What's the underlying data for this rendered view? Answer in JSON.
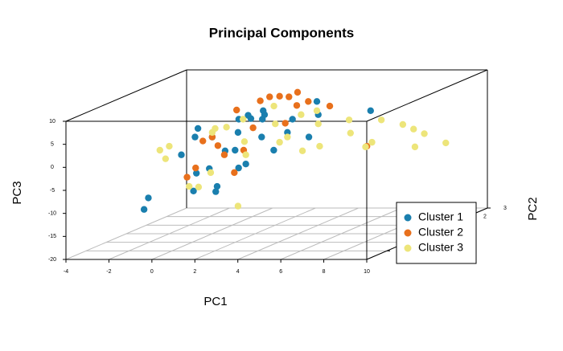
{
  "chart_data": {
    "type": "scatter3d",
    "title": "Principal Components",
    "x_label": "PC1",
    "y_label": "PC2",
    "z_label": "PC3",
    "xlim": [
      -4,
      10
    ],
    "xticks": [
      -4,
      -2,
      0,
      2,
      4,
      6,
      8,
      10
    ],
    "ylim": [
      -3,
      3
    ],
    "yticks": [
      -2,
      -1,
      0,
      1,
      2,
      3
    ],
    "zlim": [
      -20,
      10
    ],
    "zticks": [
      -20,
      -15,
      -10,
      -5,
      0,
      5,
      10
    ],
    "grid": true,
    "legend": "bottom-right",
    "series": [
      {
        "name": "Cluster 1",
        "color": "#1a7fae",
        "x": [
          -1.3,
          -1.1,
          -0.5,
          0,
          0.3,
          0.8,
          1.2,
          1.5,
          2,
          2.3,
          2.8,
          3.1,
          3.5,
          4,
          0.5,
          1,
          -0.2,
          1.8,
          2.5,
          3,
          0.2,
          1.4,
          -0.8,
          2.1,
          4.5,
          5.5,
          1.1,
          0.6,
          3.8,
          -1.6
        ],
        "y": [
          -2,
          -2,
          -1,
          0,
          1,
          -1,
          0,
          1,
          -1,
          0,
          1,
          -2,
          0,
          1,
          2,
          -2,
          2,
          0,
          -1,
          2,
          -1,
          1,
          0,
          -2,
          0,
          2,
          -1,
          0,
          -1,
          1
        ],
        "z": [
          -11,
          -8.5,
          -1,
          1,
          3,
          -4,
          2,
          4,
          0,
          1,
          3,
          -2,
          2,
          4,
          3,
          -7,
          2,
          5,
          -3,
          5,
          -5,
          3,
          1,
          -6,
          1,
          3,
          -9,
          -2,
          0,
          1
        ]
      },
      {
        "name": "Cluster 2",
        "color": "#e8701c",
        "x": [
          0.2,
          0.8,
          1.3,
          1.7,
          2.2,
          2.6,
          3,
          3.4,
          0.5,
          1.1,
          1.9,
          2.4,
          2.9,
          0,
          3.6,
          1.5,
          2.1,
          7.2,
          0.7,
          1.2
        ],
        "y": [
          1,
          2,
          1,
          2,
          1,
          2,
          1,
          0,
          -1,
          -2,
          0,
          -1,
          -2,
          0,
          2,
          -1,
          2,
          0,
          -2,
          -1
        ],
        "z": [
          5,
          6,
          7,
          6,
          8,
          5,
          6,
          4,
          2,
          -2,
          3,
          0,
          -3,
          1,
          4,
          -1,
          7,
          -1,
          -4,
          1
        ]
      },
      {
        "name": "Cluster 3",
        "color": "#ede57a",
        "x": [
          -2,
          -1.5,
          -0.8,
          0,
          0.5,
          1,
          1.5,
          2,
          2.5,
          3,
          3.5,
          4,
          4.5,
          5,
          5.5,
          6,
          6.5,
          7,
          7.5,
          8,
          8.5,
          9,
          0.3,
          1.2,
          2.2,
          -0.3,
          1.8,
          3.2,
          4.2,
          6.2,
          0.8,
          1.6
        ],
        "y": [
          0,
          -1,
          1,
          0,
          1,
          2,
          0,
          1,
          -1,
          2,
          0,
          1,
          2,
          0,
          1,
          2,
          1,
          2,
          2,
          2,
          1,
          2,
          -1,
          0,
          1,
          -2,
          -2,
          1,
          0,
          1,
          -2,
          -1
        ],
        "z": [
          -1,
          0,
          1,
          2,
          3,
          4,
          0,
          2,
          -1,
          3,
          1,
          2,
          1,
          -1,
          0,
          1,
          -2,
          0,
          -1,
          -2,
          -3,
          -4,
          -8,
          -14,
          -2,
          0,
          -3,
          4,
          -2,
          -3,
          -6,
          5
        ]
      }
    ]
  }
}
